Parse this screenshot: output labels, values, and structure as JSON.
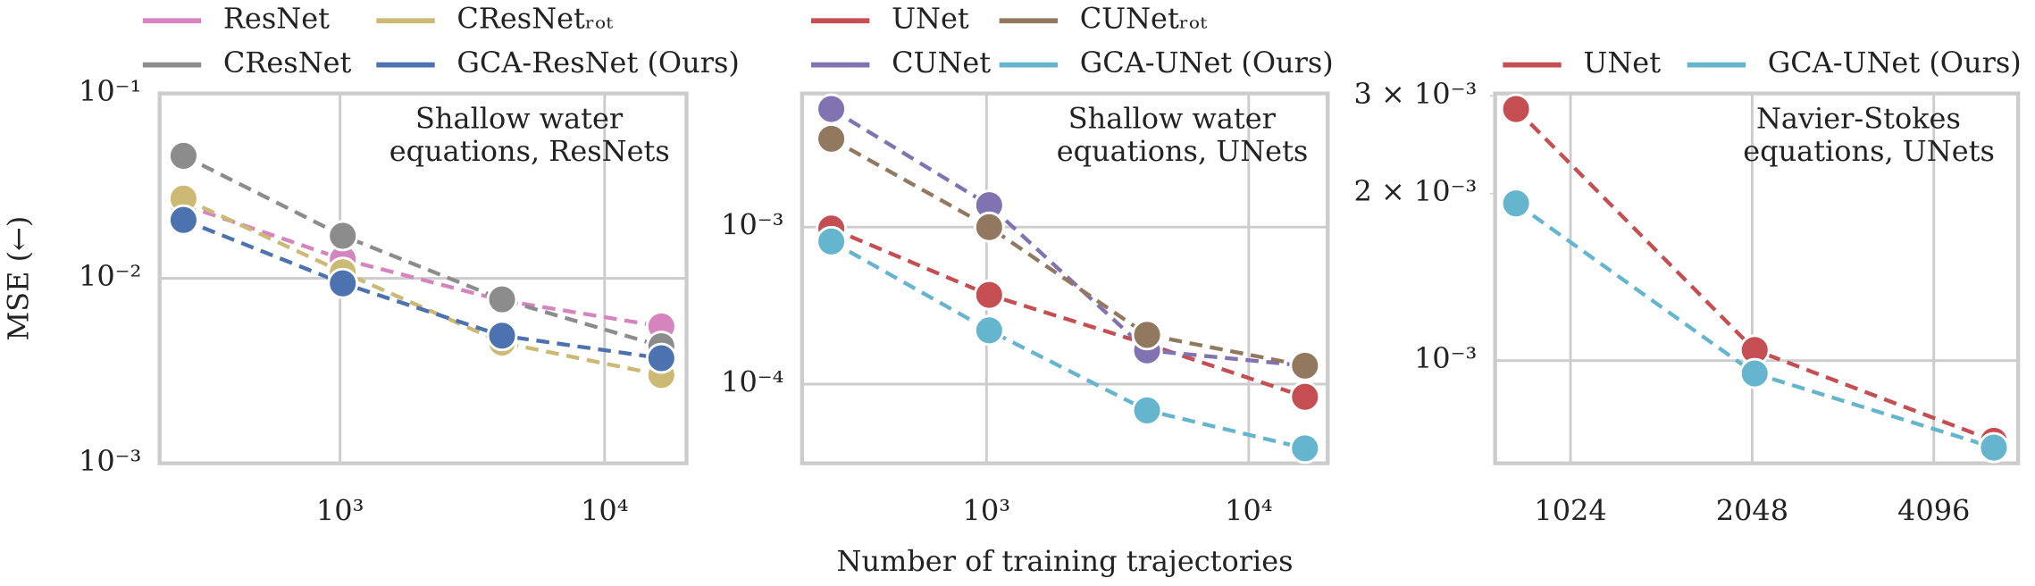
{
  "chart_data": [
    {
      "type": "line",
      "ylabel": "MSE (←)",
      "annotation": [
        "Shallow water",
        "equations, ResNets"
      ],
      "xscale": "log",
      "yscale": "log",
      "grid": true,
      "x": [
        256,
        1024,
        4096,
        16384
      ],
      "xlim": [
        208,
        20400
      ],
      "ylim": [
        0.001,
        0.1
      ],
      "xticks": [
        {
          "value": 1000,
          "label": "10³"
        },
        {
          "value": 10000,
          "label": "10⁴"
        }
      ],
      "yticks": [
        {
          "value": 0.1,
          "label": "10⁻¹"
        },
        {
          "value": 0.01,
          "label": "10⁻²"
        },
        {
          "value": 0.001,
          "label": "10⁻³"
        }
      ],
      "series": [
        {
          "name": "ResNet",
          "color": "#d684bd",
          "values": [
            0.025,
            0.0127,
            0.0076,
            0.0055
          ]
        },
        {
          "name": "CResNet",
          "color": "#8c8c8c",
          "values": [
            0.046,
            0.017,
            0.0077,
            0.0043
          ]
        },
        {
          "name": "CResNetᵣₒₜ",
          "color": "#ccb974",
          "values": [
            0.027,
            0.0108,
            0.0045,
            0.003
          ]
        },
        {
          "name": "GCA-ResNet (Ours)",
          "color": "#4c72b0",
          "values": [
            0.0207,
            0.0094,
            0.0049,
            0.0037
          ]
        }
      ]
    },
    {
      "type": "line",
      "xlabel": "Number of training trajectories",
      "annotation": [
        "Shallow water",
        "equations, UNets"
      ],
      "xscale": "log",
      "yscale": "log",
      "grid": true,
      "x": [
        256,
        1024,
        4096,
        16384
      ],
      "xlim": [
        198,
        20000
      ],
      "ylim": [
        3.13e-05,
        0.0071
      ],
      "xticks": [
        {
          "value": 1000,
          "label": "10³"
        },
        {
          "value": 10000,
          "label": "10⁴"
        }
      ],
      "yticks": [
        {
          "value": 0.001,
          "label": "10⁻³"
        },
        {
          "value": 0.0001,
          "label": "10⁻⁴"
        }
      ],
      "series": [
        {
          "name": "UNet",
          "color": "#c44e52",
          "values": [
            0.00098,
            0.00037,
            0.00018,
            8.3e-05
          ]
        },
        {
          "name": "CUNet",
          "color": "#8172b2",
          "values": [
            0.00565,
            0.00138,
            0.000164,
            0.000131
          ]
        },
        {
          "name": "CUNetᵣₒₜ",
          "color": "#937860",
          "values": [
            0.00365,
            0.001,
            0.000206,
            0.000131
          ]
        },
        {
          "name": "GCA-UNet (Ours)",
          "color": "#64b5cd",
          "values": [
            0.00081,
            0.00022,
            6.8e-05,
            3.9e-05
          ]
        }
      ]
    },
    {
      "type": "line",
      "annotation": [
        "Navier-Stokes",
        "equations, UNets"
      ],
      "xscale": "log",
      "yscale": "log",
      "grid": true,
      "x": [
        832,
        2068,
        5150
      ],
      "xlim": [
        768,
        5650
      ],
      "ylim": [
        0.000653,
        0.00303
      ],
      "xticks": [
        1024,
        2048,
        4096
      ],
      "yticks": [
        {
          "value": 0.001,
          "label": "10⁻³"
        }
      ],
      "minor_yticks": [
        {
          "value": 0.002,
          "label": "2 × 10⁻³"
        },
        {
          "value": 0.003,
          "label": "3 × 10⁻³"
        }
      ],
      "series": [
        {
          "name": "UNet",
          "color": "#c44e52",
          "values": [
            0.00284,
            0.001045,
            0.000717
          ]
        },
        {
          "name": "GCA-UNet (Ours)",
          "color": "#64b5cd",
          "values": [
            0.00192,
            0.000948,
            0.000697
          ]
        }
      ]
    }
  ]
}
